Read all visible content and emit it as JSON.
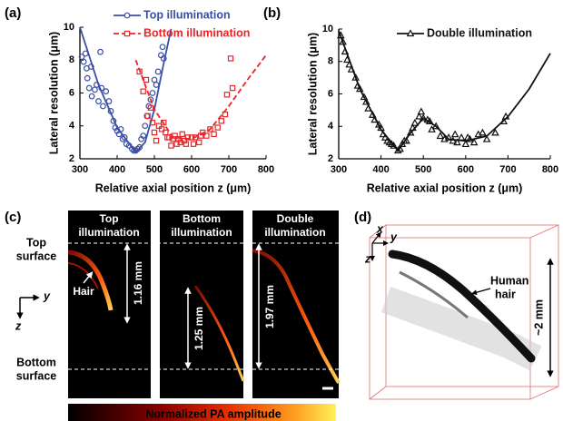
{
  "chart_data": [
    {
      "type": "scatter",
      "panel_label": "(a)",
      "x_label": "Relative axial position z (μm)",
      "y_label": "Lateral resolution (μm)",
      "xlim": [
        300,
        800
      ],
      "xticks": [
        300,
        400,
        500,
        600,
        700,
        800
      ],
      "ylim": [
        2,
        10
      ],
      "yticks": [
        2,
        4,
        6,
        8,
        10
      ],
      "series": [
        {
          "name": "Top illumination",
          "color": "#3a4fa3",
          "marker": "circle",
          "x": [
            305,
            310,
            315,
            318,
            320,
            325,
            330,
            332,
            340,
            345,
            350,
            355,
            358,
            362,
            370,
            378,
            383,
            390,
            395,
            400,
            405,
            410,
            415,
            420,
            425,
            432,
            440,
            445,
            450,
            455,
            460,
            465,
            470,
            475,
            480,
            485,
            490,
            495,
            500,
            505,
            510,
            518,
            522,
            525
          ],
          "values": [
            8.2,
            7.9,
            8.4,
            7.5,
            6.9,
            6.3,
            7.6,
            5.8,
            6.2,
            6.5,
            5.5,
            8.5,
            6.3,
            5.2,
            6.1,
            5.5,
            4.9,
            4.3,
            3.9,
            3.7,
            3.5,
            3.8,
            3.2,
            3.3,
            2.9,
            2.8,
            2.6,
            2.5,
            2.5,
            2.6,
            2.7,
            3.2,
            3.4,
            4.0,
            4.6,
            5.2,
            5.6,
            6.0,
            6.8,
            6.5,
            7.3,
            8.3,
            8.8,
            8.1
          ],
          "fit_x": [
            300,
            350,
            400,
            450,
            475,
            500,
            525,
            545
          ],
          "fit_values": [
            10,
            6.5,
            3.9,
            2.4,
            3.0,
            5.0,
            7.8,
            9.9
          ],
          "fit_dashed": false
        },
        {
          "name": "Bottom illumination",
          "color": "#e8262a",
          "marker": "square",
          "x": [
            460,
            470,
            478,
            482,
            490,
            495,
            500,
            505,
            512,
            520,
            525,
            530,
            535,
            540,
            545,
            550,
            555,
            560,
            565,
            570,
            575,
            580,
            585,
            590,
            600,
            605,
            610,
            620,
            625,
            630,
            640,
            650,
            660,
            670,
            680,
            690,
            695,
            705,
            710
          ],
          "values": [
            7.3,
            6.1,
            6.8,
            4.6,
            5.1,
            4.2,
            3.6,
            3.1,
            4.0,
            3.8,
            4.2,
            3.6,
            3.3,
            3.3,
            2.8,
            3.2,
            3.4,
            2.9,
            3.2,
            3.0,
            3.5,
            3.1,
            2.9,
            3.3,
            3.3,
            2.9,
            3.3,
            3.0,
            3.4,
            3.6,
            3.4,
            3.8,
            3.5,
            3.9,
            4.3,
            4.7,
            5.9,
            8.1,
            6.3
          ],
          "fit_x": [
            450,
            500,
            550,
            600,
            650,
            700,
            750,
            800
          ],
          "fit_values": [
            8,
            5.0,
            3.3,
            3.2,
            3.8,
            5.2,
            6.8,
            8.3
          ],
          "fit_dashed": true
        }
      ]
    },
    {
      "type": "scatter",
      "panel_label": "(b)",
      "x_label": "Relative axial position z (μm)",
      "y_label": "Lateral resolution (μm)",
      "xlim": [
        300,
        800
      ],
      "xticks": [
        300,
        400,
        500,
        600,
        700,
        800
      ],
      "ylim": [
        2,
        10
      ],
      "yticks": [
        2,
        4,
        6,
        8,
        10
      ],
      "series": [
        {
          "name": "Double illumination",
          "color": "#111111",
          "marker": "triangle",
          "x": [
            305,
            310,
            315,
            320,
            325,
            330,
            340,
            345,
            350,
            360,
            365,
            370,
            380,
            385,
            395,
            400,
            405,
            410,
            415,
            420,
            425,
            430,
            440,
            445,
            450,
            455,
            460,
            470,
            475,
            480,
            490,
            495,
            500,
            510,
            515,
            520,
            530,
            540,
            550,
            560,
            570,
            575,
            580,
            590,
            600,
            605,
            610,
            620,
            630,
            640,
            650,
            670,
            690,
            695
          ],
          "values": [
            9.6,
            9.2,
            8.6,
            8.1,
            7.8,
            7.5,
            7.0,
            6.5,
            6.3,
            5.8,
            5.5,
            5.1,
            4.7,
            4.4,
            4.1,
            3.9,
            3.5,
            3.3,
            3.1,
            3.0,
            2.9,
            2.8,
            2.5,
            2.6,
            2.9,
            3.1,
            3.1,
            3.6,
            3.9,
            4.2,
            4.6,
            4.9,
            4.5,
            4.4,
            4.3,
            3.8,
            4.0,
            3.4,
            3.2,
            3.3,
            3.1,
            3.5,
            3.0,
            3.3,
            2.9,
            3.3,
            3.2,
            3.0,
            3.5,
            3.6,
            3.2,
            3.6,
            4.3,
            4.6
          ],
          "fit_x": [
            300,
            350,
            400,
            440,
            470,
            500,
            530,
            560,
            600,
            650,
            700,
            750,
            800
          ],
          "fit_values": [
            9.9,
            6.3,
            3.8,
            2.5,
            3.6,
            4.5,
            4.0,
            3.2,
            3.1,
            3.4,
            4.6,
            6.3,
            8.5
          ],
          "fit_dashed": false
        }
      ]
    }
  ],
  "panel_c": {
    "panel_label": "(c)",
    "top_surface": [
      "Top",
      "surface"
    ],
    "bottom_surface": [
      "Bottom",
      "surface"
    ],
    "columns": [
      [
        "Top",
        "illumination"
      ],
      [
        "Bottom",
        "illumination"
      ],
      [
        "Double",
        "illumination"
      ]
    ],
    "hair": "Hair",
    "axis_y": "y",
    "axis_z": "z",
    "distances": [
      "1.16 mm",
      "1.25 mm",
      "1.97 mm"
    ],
    "colorbar": "Normalized PA amplitude"
  },
  "panel_d": {
    "panel_label": "(d)",
    "axis_x": "x",
    "axis_y": "y",
    "axis_z": "z",
    "hair": [
      "Human",
      "hair"
    ],
    "size": "~2 mm"
  }
}
